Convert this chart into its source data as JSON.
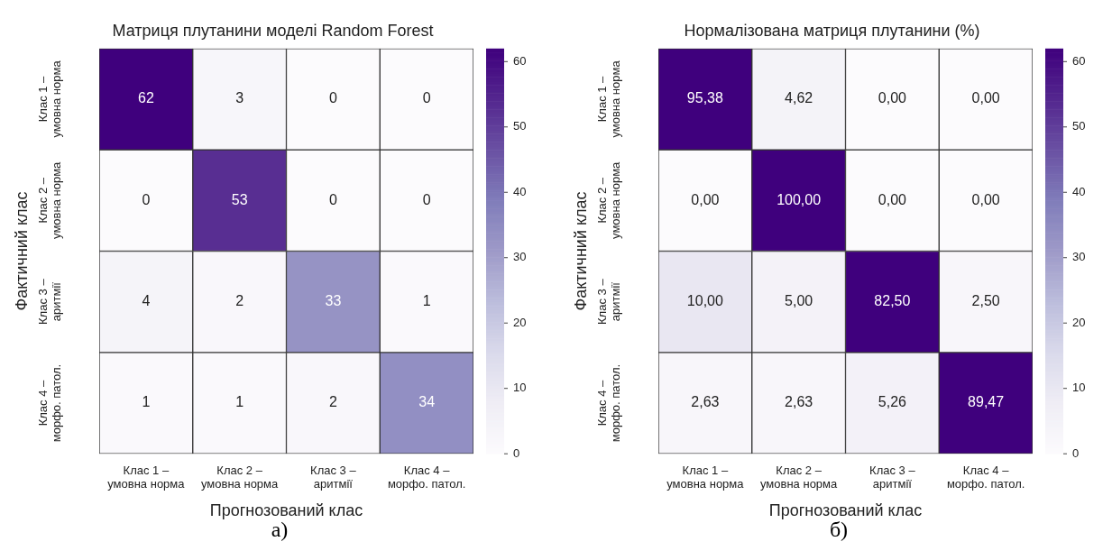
{
  "chart_data": [
    {
      "type": "heatmap",
      "title": "Матриця плутанини моделі Random Forest",
      "xlabel": "Прогнозований клас",
      "ylabel": "Фактичний клас",
      "categories": [
        "Клас 1 –\nумовна норма",
        "Клас 2 –\nумовна норма",
        "Клас 3 –\nаритмії",
        "Клас 4 –\nморфо. патол."
      ],
      "y_categories": [
        "Клас 1 –\nумовна норма",
        "Клас 2 –\nумовна норма",
        "Клас 3 –\nаритмії",
        "Клас 4 –\nморфо. патол."
      ],
      "cells": [
        [
          62,
          3,
          0,
          0
        ],
        [
          0,
          53,
          0,
          0
        ],
        [
          4,
          2,
          33,
          1
        ],
        [
          1,
          1,
          2,
          34
        ]
      ],
      "data_labels": true,
      "clim": [
        0,
        62
      ],
      "cticks": [
        0,
        10,
        20,
        30,
        40,
        50,
        60
      ],
      "annotations": [
        "а)"
      ]
    },
    {
      "type": "heatmap",
      "title": "Нормалізована матриця плутанини (%)",
      "xlabel": "Прогнозований клас",
      "ylabel": "Фактичний клас",
      "categories": [
        "Клас 1 –\nумовна норма",
        "Клас 2 –\nумовна норма",
        "Клас 3 –\nаритмії",
        "Клас 4 –\nморфо. патол."
      ],
      "y_categories": [
        "Клас 1 –\nумовна норма",
        "Клас 2 –\nумовна норма",
        "Клас 3 –\nаритмії",
        "Клас 4 –\nморфо. патол."
      ],
      "cells": [
        [
          95.38,
          4.62,
          0,
          0
        ],
        [
          0,
          100,
          0,
          0
        ],
        [
          10,
          5,
          82.5,
          2.5
        ],
        [
          2.63,
          2.63,
          5.26,
          89.47
        ]
      ],
      "cell_labels": [
        [
          "95,38",
          "4,62",
          "0,00",
          "0,00"
        ],
        [
          "0,00",
          "100,00",
          "0,00",
          "0,00"
        ],
        [
          "10,00",
          "5,00",
          "82,50",
          "2,50"
        ],
        [
          "2,63",
          "2,63",
          "5,26",
          "89,47"
        ]
      ],
      "clim": [
        0,
        62
      ],
      "cticks": [
        0,
        10,
        20,
        30,
        40,
        50,
        60
      ],
      "annotations": [
        "б)"
      ]
    }
  ]
}
